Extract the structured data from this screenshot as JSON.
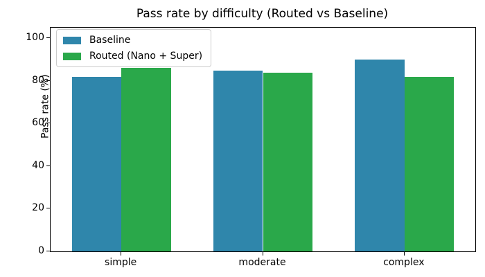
{
  "chart_data": {
    "type": "bar",
    "title": "Pass rate by difficulty (Routed vs Baseline)",
    "xlabel": "",
    "ylabel": "Pass rate (%)",
    "categories": [
      "simple",
      "moderate",
      "complex"
    ],
    "series": [
      {
        "name": "Baseline",
        "color": "#2f86ab",
        "values": [
          82,
          85,
          90
        ]
      },
      {
        "name": "Routed (Nano + Super)",
        "color": "#2aa84a",
        "values": [
          86,
          84,
          82
        ]
      }
    ],
    "yticks": [
      0,
      20,
      40,
      60,
      80,
      100
    ],
    "ylim": [
      0,
      105
    ],
    "grid": false,
    "legend_position": "upper left",
    "bar_width_fraction": 0.35,
    "background_color": "#ffffff",
    "spine_color": "#000000"
  }
}
